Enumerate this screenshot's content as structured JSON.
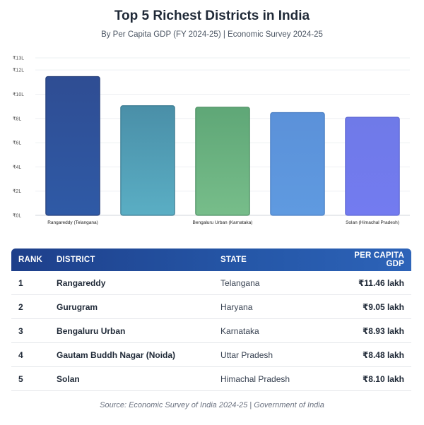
{
  "header": {
    "title": "Top 5 Richest Districts in India",
    "subtitle": "By Per Capita GDP (FY 2024-25) | Economic Survey 2024-25"
  },
  "chart_data": {
    "type": "bar",
    "categories": [
      "Rangareddy (Telangana)",
      "Gurugram (Haryana)",
      "Bengaluru Urban (Karnataka)",
      "Gautam Buddh Nagar (Uttar Pradesh)",
      "Solan (Himachal Pradesh)"
    ],
    "visible_category_labels": [
      "Rangareddy (Telangana)",
      "",
      "Bengaluru Urban (Karnataka)",
      "",
      "Solan (Himachal Pradesh)"
    ],
    "values": [
      11.46,
      9.05,
      8.93,
      8.48,
      8.1
    ],
    "unit": "lakh",
    "ylim": [
      0,
      13
    ],
    "yticks": [
      {
        "value": 0,
        "label": "₹0L"
      },
      {
        "value": 2,
        "label": "₹2L"
      },
      {
        "value": 4,
        "label": "₹4L"
      },
      {
        "value": 6,
        "label": "₹6L"
      },
      {
        "value": 8,
        "label": "₹8L"
      },
      {
        "value": 10,
        "label": "₹10L"
      },
      {
        "value": 12,
        "label": "₹12L"
      },
      {
        "value": 13,
        "label": "₹13L"
      }
    ],
    "grid": true,
    "colors": [
      {
        "top": "#2f4d93",
        "bottom": "#2f5aa6",
        "stroke": "#253f7a"
      },
      {
        "top": "#4a8fa8",
        "bottom": "#5aaec4",
        "stroke": "#3c7c92"
      },
      {
        "top": "#5fa777",
        "bottom": "#77bd8a",
        "stroke": "#4d8f63"
      },
      {
        "top": "#5b91d9",
        "bottom": "#5f9ae0",
        "stroke": "#4a7fc4"
      },
      {
        "top": "#6f7ae8",
        "bottom": "#737bf0",
        "stroke": "#5d67d2"
      }
    ]
  },
  "table": {
    "headers": {
      "rank": "RANK",
      "district": "DISTRICT",
      "state": "STATE",
      "gdp": "PER CAPITA GDP"
    },
    "rows": [
      {
        "rank": "1",
        "district": "Rangareddy",
        "state": "Telangana",
        "gdp": "₹11.46 lakh"
      },
      {
        "rank": "2",
        "district": "Gurugram",
        "state": "Haryana",
        "gdp": "₹9.05 lakh"
      },
      {
        "rank": "3",
        "district": "Bengaluru Urban",
        "state": "Karnataka",
        "gdp": "₹8.93 lakh"
      },
      {
        "rank": "4",
        "district": "Gautam Buddh Nagar (Noida)",
        "state": "Uttar Pradesh",
        "gdp": "₹8.48 lakh"
      },
      {
        "rank": "5",
        "district": "Solan",
        "state": "Himachal Pradesh",
        "gdp": "₹8.10 lakh"
      }
    ]
  },
  "footer": {
    "source": "Source: Economic Survey of India 2024-25 | Government of India"
  }
}
